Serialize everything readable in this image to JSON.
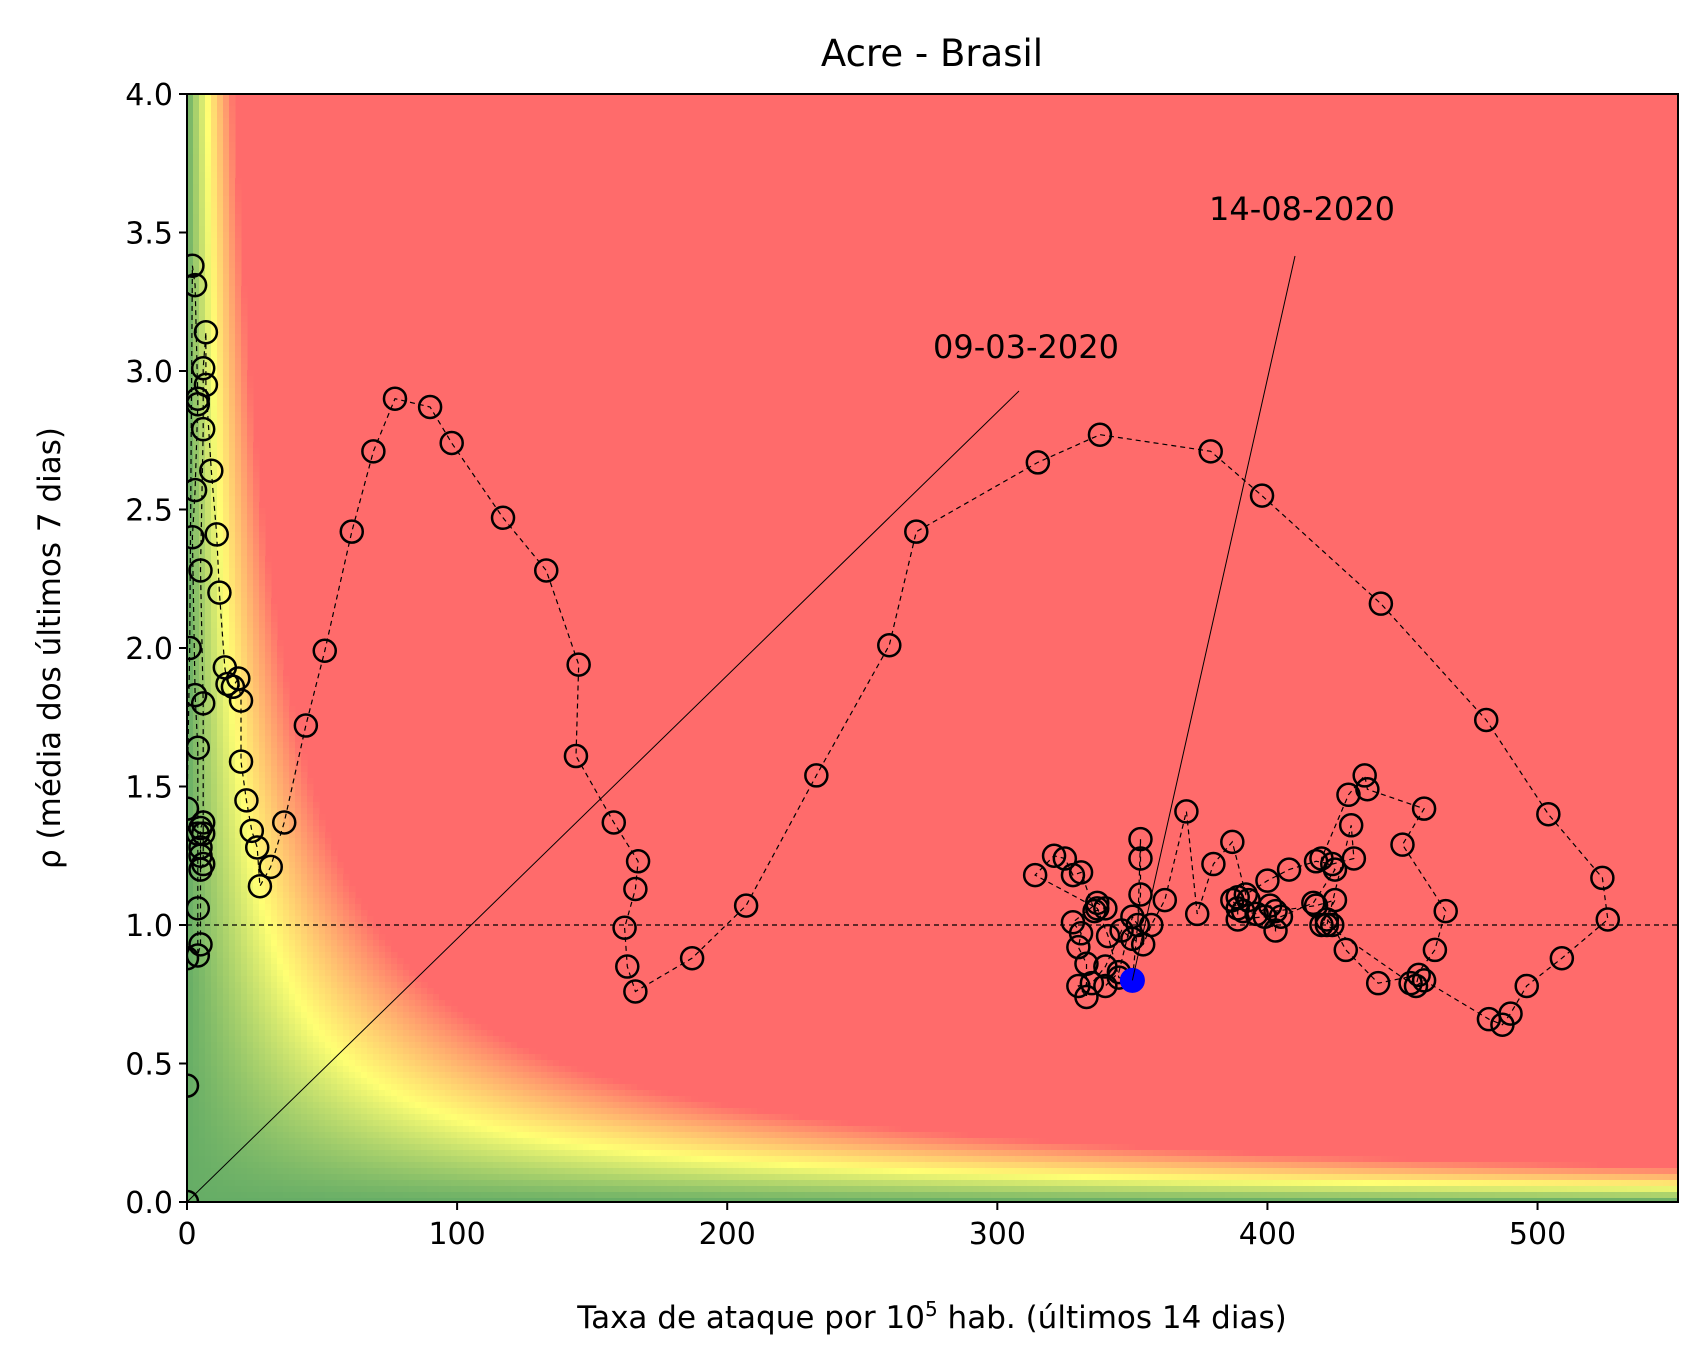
{
  "chart_data": {
    "type": "scatter",
    "title": "Acre - Brasil",
    "xlabel": "Taxa de ataque por 10",
    "xlabel_sup": "5",
    "xlabel_rest": " hab. (últimos 14 dias)",
    "ylabel": "ρ (média dos últimos 7 dias)",
    "xlim": [
      0,
      552
    ],
    "ylim": [
      0,
      4
    ],
    "xticks": [
      "0",
      "100",
      "200",
      "300",
      "400",
      "500"
    ],
    "yticks": [
      "0.0",
      "0.5",
      "1.0",
      "1.5",
      "2.0",
      "2.5",
      "3.0",
      "3.5",
      "4.0"
    ],
    "reference_line_y": 1.0,
    "background": "risk gradient green-yellow-red (rho x attack rate)",
    "colors": {
      "low": "#66ad66",
      "mid": "#ffff73",
      "high": "#ff6b6b",
      "marker": "#000000",
      "current": "#0000ff"
    },
    "annotations": [
      {
        "text": "09-03-2020",
        "point": [
          0,
          0
        ]
      },
      {
        "text": "14-08-2020",
        "point": [
          350,
          0.8
        ]
      }
    ],
    "series": [
      {
        "marker": "open-circle",
        "line": "dashed",
        "points": [
          [
            0,
            0
          ],
          [
            0,
            0.42
          ],
          [
            0,
            0.88
          ],
          [
            0,
            1.42
          ],
          [
            1,
            2.0
          ],
          [
            2,
            3.38
          ],
          [
            3,
            3.31
          ],
          [
            4,
            2.9
          ],
          [
            4,
            2.88
          ],
          [
            3,
            2.57
          ],
          [
            2,
            2.4
          ],
          [
            3,
            1.83
          ],
          [
            4,
            1.64
          ],
          [
            4,
            1.33
          ],
          [
            4,
            1.06
          ],
          [
            4,
            0.89
          ],
          [
            5,
            0.93
          ],
          [
            5,
            1.25
          ],
          [
            5,
            1.35
          ],
          [
            6,
            1.37
          ],
          [
            6,
            1.33
          ],
          [
            5,
            1.28
          ],
          [
            5,
            1.2
          ],
          [
            6,
            1.22
          ],
          [
            6,
            1.8
          ],
          [
            5,
            2.28
          ],
          [
            6,
            2.79
          ],
          [
            6,
            3.01
          ],
          [
            7,
            3.14
          ],
          [
            7,
            2.95
          ],
          [
            9,
            2.64
          ],
          [
            11,
            2.41
          ],
          [
            12,
            2.2
          ],
          [
            14,
            1.93
          ],
          [
            15,
            1.87
          ],
          [
            17,
            1.86
          ],
          [
            19,
            1.89
          ],
          [
            20,
            1.81
          ],
          [
            20,
            1.59
          ],
          [
            22,
            1.45
          ],
          [
            24,
            1.34
          ],
          [
            26,
            1.28
          ],
          [
            27,
            1.14
          ],
          [
            31,
            1.21
          ],
          [
            36,
            1.37
          ],
          [
            44,
            1.72
          ],
          [
            51,
            1.99
          ],
          [
            61,
            2.42
          ],
          [
            69,
            2.71
          ],
          [
            77,
            2.9
          ],
          [
            90,
            2.87
          ],
          [
            98,
            2.74
          ],
          [
            117,
            2.47
          ],
          [
            133,
            2.28
          ],
          [
            145,
            1.94
          ],
          [
            144,
            1.61
          ],
          [
            158,
            1.37
          ],
          [
            167,
            1.23
          ],
          [
            166,
            1.13
          ],
          [
            162,
            0.99
          ],
          [
            163,
            0.85
          ],
          [
            166,
            0.76
          ],
          [
            187,
            0.88
          ],
          [
            207,
            1.07
          ],
          [
            233,
            1.54
          ],
          [
            260,
            2.01
          ],
          [
            270,
            2.42
          ],
          [
            315,
            2.67
          ],
          [
            338,
            2.77
          ],
          [
            379,
            2.71
          ],
          [
            398,
            2.55
          ],
          [
            442,
            2.16
          ],
          [
            481,
            1.74
          ],
          [
            504,
            1.4
          ],
          [
            524,
            1.17
          ],
          [
            526,
            1.02
          ],
          [
            509,
            0.88
          ],
          [
            496,
            0.78
          ],
          [
            490,
            0.68
          ],
          [
            487,
            0.64
          ],
          [
            482,
            0.66
          ],
          [
            458,
            0.8
          ],
          [
            455,
            0.78
          ],
          [
            456,
            0.82
          ],
          [
            441,
            0.79
          ],
          [
            429,
            0.91
          ],
          [
            424,
            1.0
          ],
          [
            422,
            1.02
          ],
          [
            420,
            1.0
          ],
          [
            425,
            1.09
          ],
          [
            418,
            1.07
          ],
          [
            403,
            1.05
          ],
          [
            403,
            0.98
          ],
          [
            399,
            1.03
          ],
          [
            389,
            1.02
          ],
          [
            389,
            1.06
          ],
          [
            387,
            1.09
          ],
          [
            389,
            1.1
          ],
          [
            393,
            1.09
          ],
          [
            391,
            1.05
          ],
          [
            396,
            1.04
          ],
          [
            401,
            1.07
          ],
          [
            405,
            1.03
          ],
          [
            417,
            1.08
          ],
          [
            425,
            1.2
          ],
          [
            420,
            1.24
          ],
          [
            430,
            1.47
          ],
          [
            436,
            1.54
          ],
          [
            437,
            1.49
          ],
          [
            458,
            1.42
          ],
          [
            450,
            1.29
          ],
          [
            466,
            1.05
          ],
          [
            462,
            0.91
          ],
          [
            453,
            0.79
          ],
          [
            422,
            1.0
          ],
          [
            431,
            1.36
          ],
          [
            432,
            1.24
          ],
          [
            424,
            1.22
          ],
          [
            418,
            1.23
          ],
          [
            408,
            1.2
          ],
          [
            400,
            1.16
          ],
          [
            392,
            1.11
          ],
          [
            387,
            1.3
          ],
          [
            380,
            1.22
          ],
          [
            374,
            1.04
          ],
          [
            370,
            1.41
          ],
          [
            362,
            1.09
          ],
          [
            357,
            1.0
          ],
          [
            354,
            0.93
          ],
          [
            350,
            0.95
          ],
          [
            346,
            0.98
          ],
          [
            340,
            0.85
          ],
          [
            335,
            0.79
          ],
          [
            330,
            0.78
          ],
          [
            333,
            0.74
          ],
          [
            333,
            0.86
          ],
          [
            330,
            0.92
          ],
          [
            331,
            0.97
          ],
          [
            328,
            1.01
          ],
          [
            337,
            1.08
          ],
          [
            340,
            1.06
          ],
          [
            336,
            1.05
          ],
          [
            331,
            1.19
          ],
          [
            328,
            1.18
          ],
          [
            325,
            1.24
          ],
          [
            321,
            1.25
          ],
          [
            314,
            1.18
          ],
          [
            337,
            1.06
          ],
          [
            341,
            0.96
          ],
          [
            345,
            0.81
          ],
          [
            350,
            0.8
          ],
          [
            353,
            1.11
          ],
          [
            353,
            1.24
          ],
          [
            353,
            1.31
          ],
          [
            352,
            1.0
          ],
          [
            350,
            1.03
          ],
          [
            345,
            0.83
          ],
          [
            340,
            0.78
          ]
        ]
      }
    ],
    "current_point": [
      350,
      0.8
    ]
  }
}
